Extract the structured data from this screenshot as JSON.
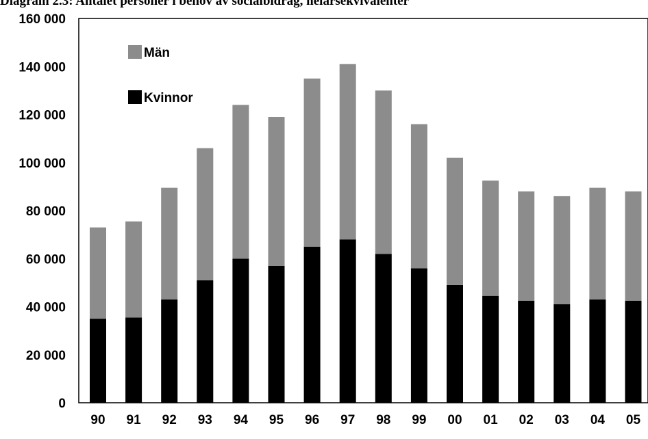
{
  "chart_data": {
    "type": "bar",
    "stacked": true,
    "title": "Diagram 2.3: Antalet personer i behov av socialbidrag, helårsekvivalenter",
    "categories": [
      "90",
      "91",
      "92",
      "93",
      "94",
      "95",
      "96",
      "97",
      "98",
      "99",
      "00",
      "01",
      "02",
      "03",
      "04",
      "05"
    ],
    "series": [
      {
        "name": "Kvinnor",
        "color": "#000000",
        "values": [
          35000,
          35500,
          43000,
          51000,
          60000,
          57000,
          65000,
          68000,
          62000,
          56000,
          49000,
          44500,
          42500,
          41000,
          43000,
          42500
        ]
      },
      {
        "name": "Män",
        "color": "#8c8c8c",
        "values": [
          38000,
          40000,
          46500,
          55000,
          64000,
          62000,
          70000,
          73000,
          68000,
          60000,
          53000,
          48000,
          45500,
          45000,
          46500,
          45500
        ]
      }
    ],
    "ylim": [
      0,
      160000
    ],
    "yticks": [
      "0",
      "20 000",
      "40 000",
      "60 000",
      "80 000",
      "100 000",
      "120 000",
      "140 000",
      "160 000"
    ],
    "ytick_values": [
      0,
      20000,
      40000,
      60000,
      80000,
      100000,
      120000,
      140000,
      160000
    ],
    "legend": {
      "position": "top-left",
      "order": [
        "Män",
        "Kvinnor"
      ]
    },
    "grid": false,
    "xlabel": "",
    "ylabel": ""
  }
}
